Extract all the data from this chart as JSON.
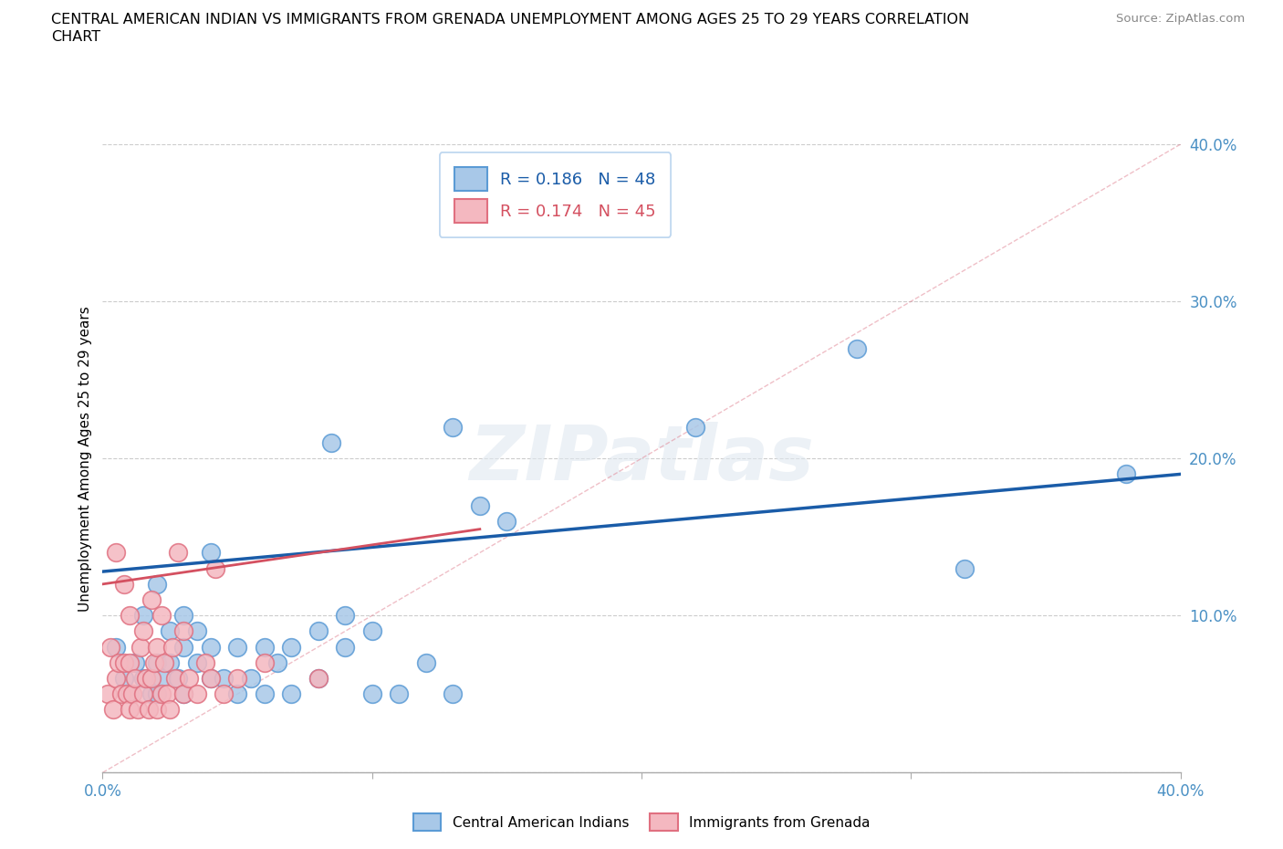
{
  "title_line1": "CENTRAL AMERICAN INDIAN VS IMMIGRANTS FROM GRENADA UNEMPLOYMENT AMONG AGES 25 TO 29 YEARS CORRELATION",
  "title_line2": "CHART",
  "source": "Source: ZipAtlas.com",
  "ylabel": "Unemployment Among Ages 25 to 29 years",
  "xlim": [
    0.0,
    0.4
  ],
  "ylim": [
    0.0,
    0.4
  ],
  "yticks": [
    0.0,
    0.1,
    0.2,
    0.3,
    0.4
  ],
  "ytick_labels": [
    "",
    "10.0%",
    "20.0%",
    "30.0%",
    "40.0%"
  ],
  "xticks": [
    0.0,
    0.1,
    0.2,
    0.3,
    0.4
  ],
  "xtick_labels": [
    "0.0%",
    "",
    "",
    "",
    "40.0%"
  ],
  "legend1_label": "R = 0.186   N = 48",
  "legend2_label": "R = 0.174   N = 45",
  "legend_color1": "#a8c8e8",
  "legend_color2": "#f4b8c0",
  "scatter_edge1": "#5b9bd5",
  "scatter_edge2": "#e07080",
  "line1_color": "#1a5ca8",
  "line2_color": "#d45060",
  "watermark": "ZIPatlas",
  "blue_scatter_x": [
    0.005,
    0.008,
    0.01,
    0.012,
    0.015,
    0.015,
    0.018,
    0.02,
    0.02,
    0.02,
    0.022,
    0.025,
    0.025,
    0.028,
    0.03,
    0.03,
    0.03,
    0.035,
    0.035,
    0.04,
    0.04,
    0.04,
    0.045,
    0.05,
    0.05,
    0.055,
    0.06,
    0.06,
    0.065,
    0.07,
    0.07,
    0.08,
    0.08,
    0.085,
    0.09,
    0.09,
    0.1,
    0.1,
    0.11,
    0.12,
    0.13,
    0.13,
    0.14,
    0.15,
    0.22,
    0.28,
    0.32,
    0.38
  ],
  "blue_scatter_y": [
    0.08,
    0.06,
    0.05,
    0.07,
    0.06,
    0.1,
    0.05,
    0.05,
    0.07,
    0.12,
    0.06,
    0.07,
    0.09,
    0.06,
    0.05,
    0.08,
    0.1,
    0.07,
    0.09,
    0.06,
    0.08,
    0.14,
    0.06,
    0.05,
    0.08,
    0.06,
    0.05,
    0.08,
    0.07,
    0.05,
    0.08,
    0.06,
    0.09,
    0.21,
    0.08,
    0.1,
    0.05,
    0.09,
    0.05,
    0.07,
    0.05,
    0.22,
    0.17,
    0.16,
    0.22,
    0.27,
    0.13,
    0.19
  ],
  "pink_scatter_x": [
    0.002,
    0.003,
    0.004,
    0.005,
    0.005,
    0.006,
    0.007,
    0.008,
    0.008,
    0.009,
    0.01,
    0.01,
    0.01,
    0.011,
    0.012,
    0.013,
    0.014,
    0.015,
    0.015,
    0.016,
    0.017,
    0.018,
    0.018,
    0.019,
    0.02,
    0.02,
    0.022,
    0.022,
    0.023,
    0.024,
    0.025,
    0.026,
    0.027,
    0.028,
    0.03,
    0.03,
    0.032,
    0.035,
    0.038,
    0.04,
    0.042,
    0.045,
    0.05,
    0.06,
    0.08
  ],
  "pink_scatter_y": [
    0.05,
    0.08,
    0.04,
    0.06,
    0.14,
    0.07,
    0.05,
    0.07,
    0.12,
    0.05,
    0.04,
    0.07,
    0.1,
    0.05,
    0.06,
    0.04,
    0.08,
    0.05,
    0.09,
    0.06,
    0.04,
    0.06,
    0.11,
    0.07,
    0.04,
    0.08,
    0.05,
    0.1,
    0.07,
    0.05,
    0.04,
    0.08,
    0.06,
    0.14,
    0.05,
    0.09,
    0.06,
    0.05,
    0.07,
    0.06,
    0.13,
    0.05,
    0.06,
    0.07,
    0.06
  ],
  "blue_line_x": [
    0.0,
    0.4
  ],
  "blue_line_y": [
    0.128,
    0.19
  ],
  "pink_line_x": [
    0.0,
    0.14
  ],
  "pink_line_y": [
    0.12,
    0.155
  ],
  "ref_line_x": [
    0.0,
    0.4
  ],
  "ref_line_y": [
    0.0,
    0.4
  ],
  "bottom_legend_labels": [
    "Central American Indians",
    "Immigrants from Grenada"
  ]
}
